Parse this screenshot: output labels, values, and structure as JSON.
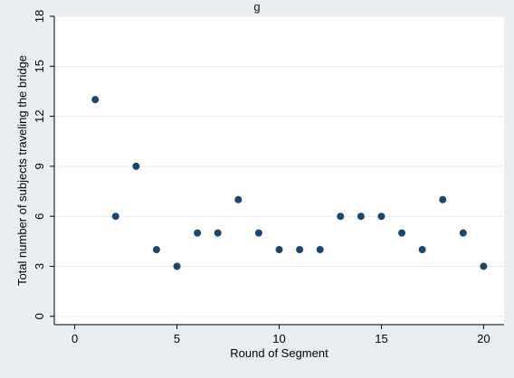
{
  "top_text": "g",
  "chart_data": {
    "type": "scatter",
    "title": "",
    "xlabel": "Round of Segment",
    "ylabel": "Total number of subjects traveling the bridge",
    "xlim": [
      -1,
      21
    ],
    "ylim": [
      -0.5,
      18
    ],
    "xticks": [
      0,
      5,
      10,
      15,
      20
    ],
    "yticks": [
      0,
      3,
      6,
      9,
      12,
      15,
      18
    ],
    "grid": "horizontal",
    "marker_color": "#1a476f",
    "plot_background": "#ffffff",
    "figure_background": "#e8eef2",
    "grid_color": "#e6ebf0",
    "x": [
      1,
      2,
      3,
      4,
      5,
      6,
      7,
      8,
      9,
      10,
      11,
      12,
      13,
      14,
      15,
      16,
      17,
      18,
      19,
      20
    ],
    "y": [
      13,
      6,
      9,
      4,
      3,
      5,
      5,
      7,
      5,
      4,
      4,
      4,
      6,
      6,
      6,
      5,
      4,
      7,
      5,
      3
    ]
  }
}
